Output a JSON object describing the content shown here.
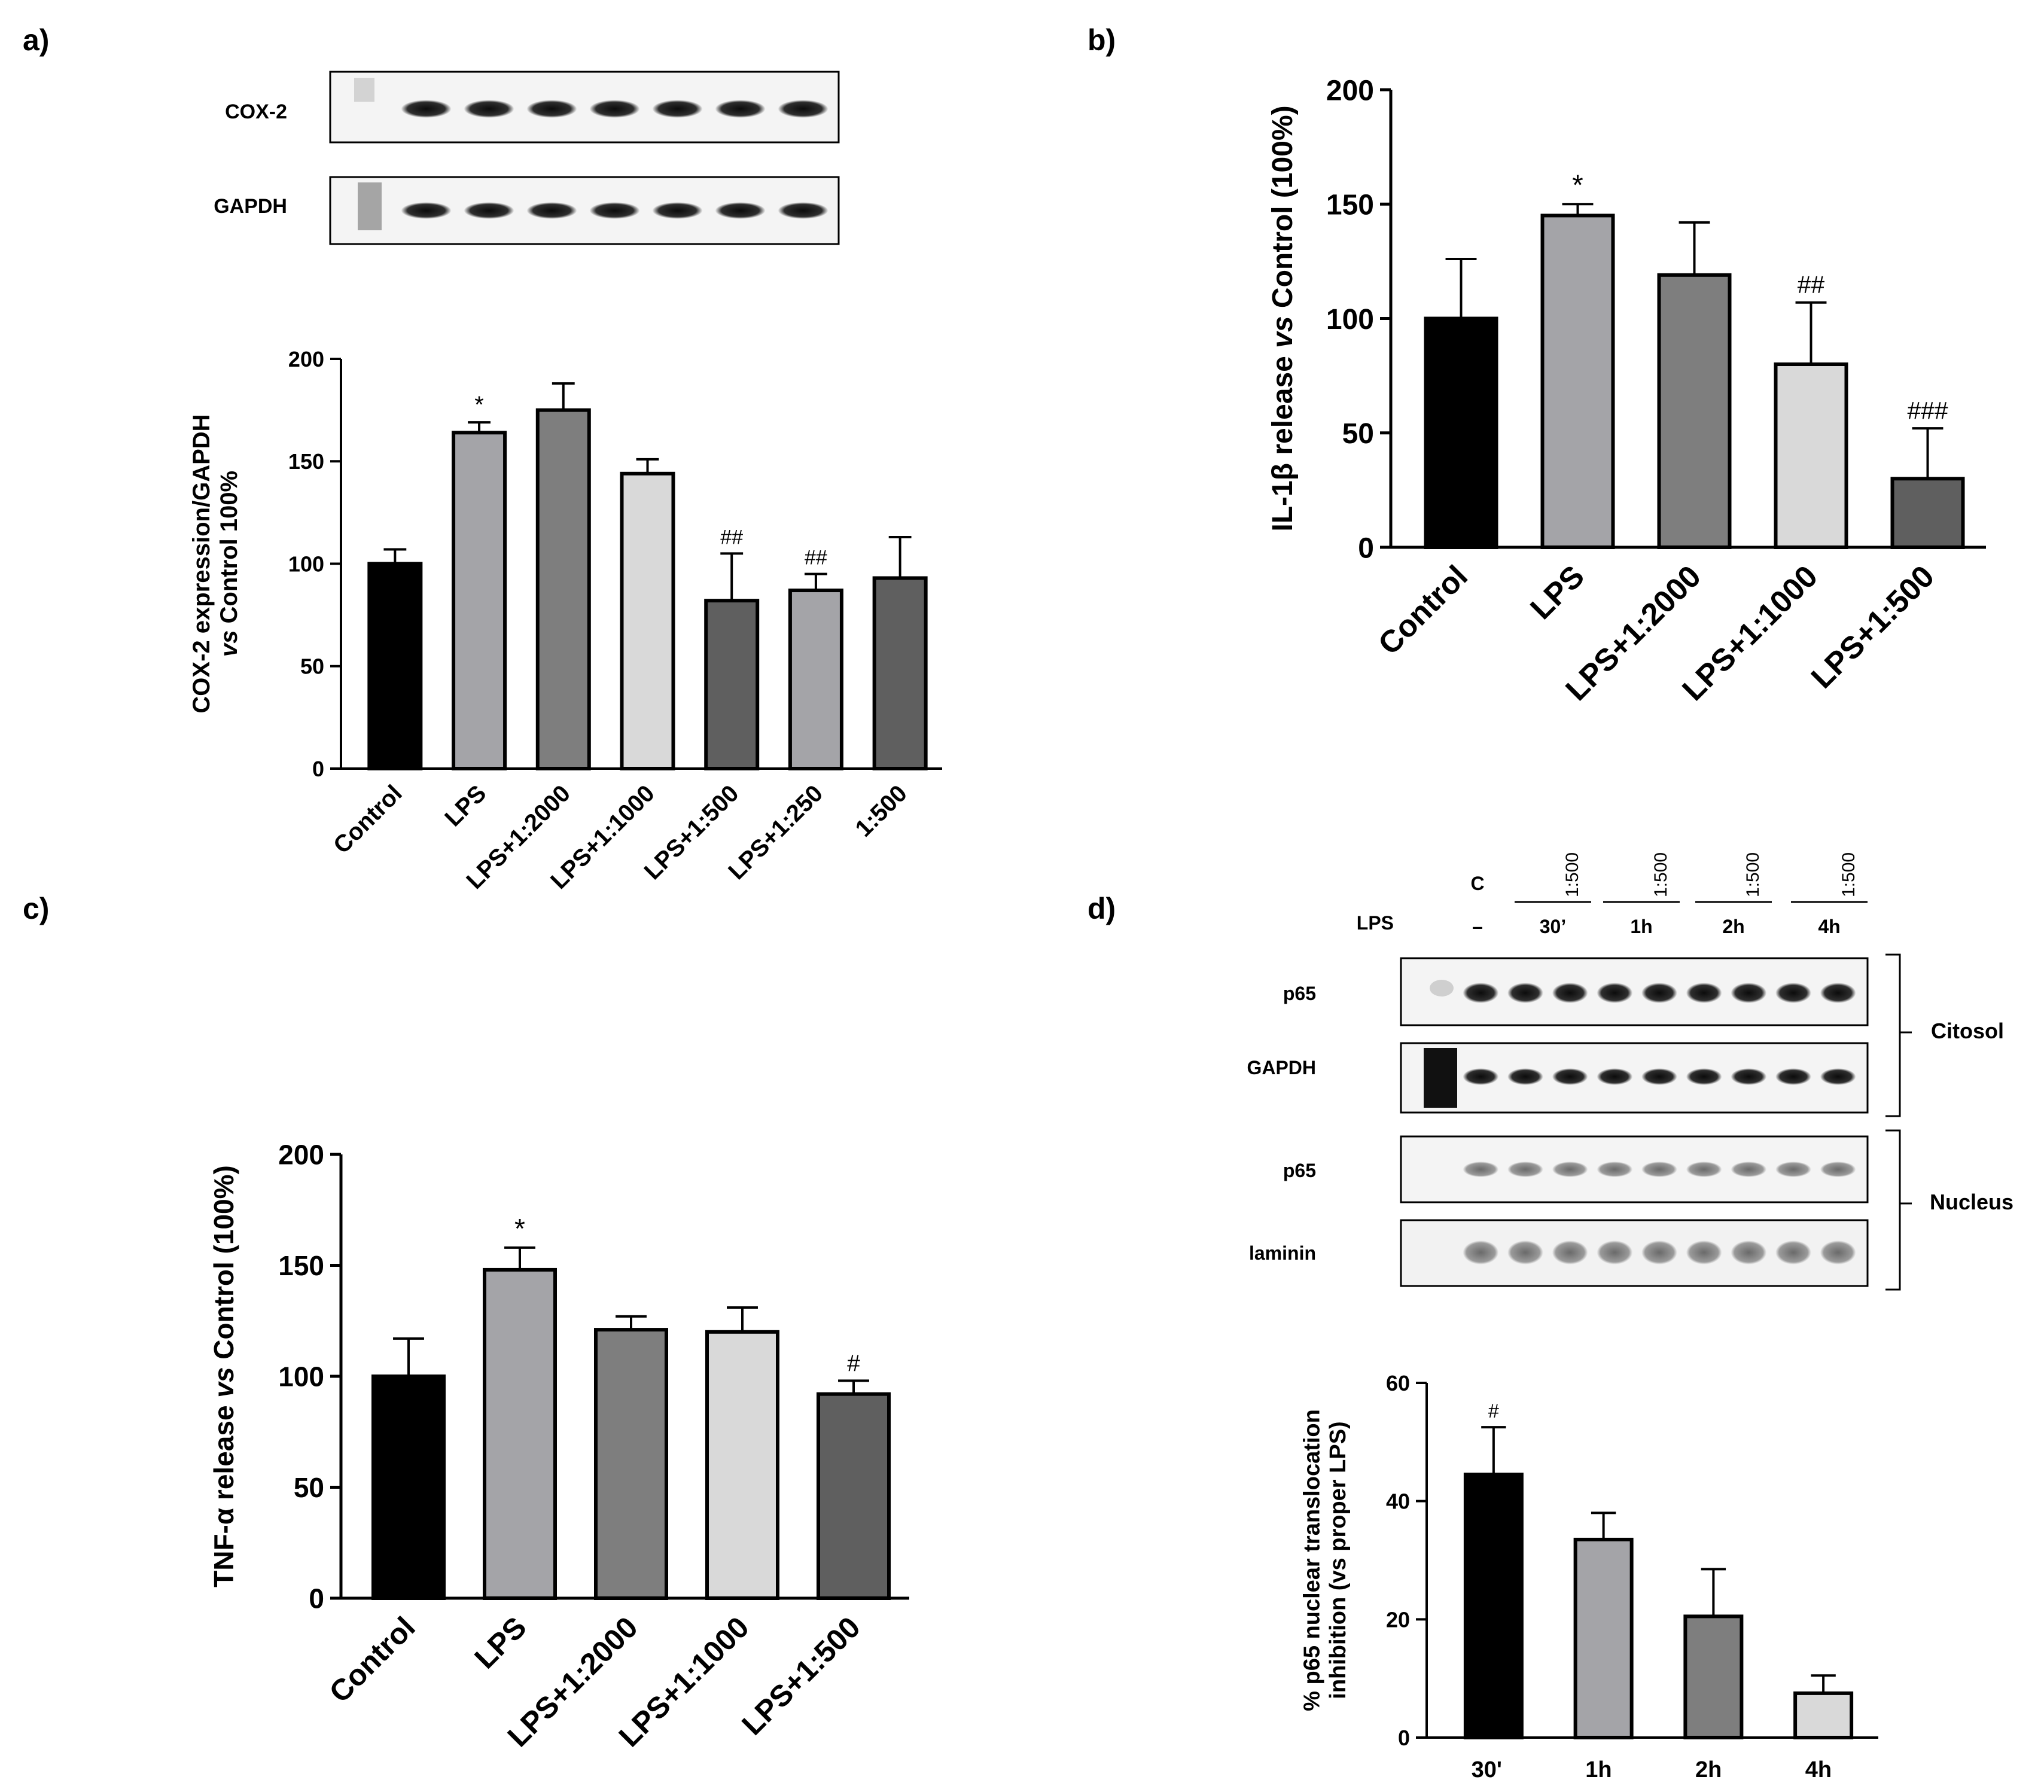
{
  "panels": {
    "a": {
      "letter": "a)",
      "blot_labels": [
        "COX-2",
        "GAPDH"
      ],
      "lanes": 7
    },
    "b": {
      "letter": "b)"
    },
    "c": {
      "letter": "c)"
    },
    "d": {
      "letter": "d)",
      "header": {
        "control": "C",
        "lps_label": "LPS",
        "lps_dash": "–",
        "dilution": "1:500",
        "times": [
          "30’",
          "1h",
          "2h",
          "4h"
        ]
      },
      "blot_labels": [
        "p65",
        "GAPDH",
        "p65",
        "laminin"
      ],
      "fraction_labels": [
        "Citosol",
        "Nucleus"
      ]
    }
  },
  "chart_data": [
    {
      "id": "a",
      "type": "bar",
      "title": "",
      "ylabel_lines": [
        "COX-2 expression/GAPDH",
        "vs Control 100%"
      ],
      "xlabel": "",
      "categories": [
        "Control",
        "LPS",
        "LPS+1:2000",
        "LPS+1:1000",
        "LPS+1:500",
        "LPS+1:250",
        "1:500"
      ],
      "values": [
        100,
        164,
        175,
        144,
        82,
        87,
        93
      ],
      "errors": [
        7,
        5,
        13,
        7,
        23,
        8,
        20
      ],
      "annotations": [
        "",
        "*",
        "",
        "",
        "##",
        "##",
        ""
      ],
      "colors": [
        "#000000",
        "#a4a4a8",
        "#7e7e7e",
        "#d9d9d9",
        "#5f5f5f",
        "#a4a4a8",
        "#5f5f5f"
      ],
      "ylim": [
        0,
        200
      ],
      "yticks": [
        0,
        50,
        100,
        150,
        200
      ]
    },
    {
      "id": "b",
      "type": "bar",
      "title": "",
      "ylabel_parts": [
        "IL-1β release ",
        "vs",
        " Control (100%)"
      ],
      "xlabel": "",
      "categories": [
        "Control",
        "LPS",
        "LPS+1:2000",
        "LPS+1:1000",
        "LPS+1:500"
      ],
      "values": [
        100,
        145,
        119,
        80,
        30
      ],
      "errors": [
        26,
        5,
        23,
        27,
        22
      ],
      "annotations": [
        "",
        "*",
        "",
        "##",
        "###"
      ],
      "colors": [
        "#000000",
        "#a4a4a8",
        "#7e7e7e",
        "#d9d9d9",
        "#5f5f5f"
      ],
      "ylim": [
        0,
        200
      ],
      "yticks": [
        0,
        50,
        100,
        150,
        200
      ]
    },
    {
      "id": "c",
      "type": "bar",
      "title": "",
      "ylabel_parts": [
        "TNF-α release ",
        "vs",
        " Control (100%)"
      ],
      "xlabel": "",
      "categories": [
        "Control",
        "LPS",
        "LPS+1:2000",
        "LPS+1:1000",
        "LPS+1:500"
      ],
      "values": [
        100,
        148,
        121,
        120,
        92
      ],
      "errors": [
        17,
        10,
        6,
        11,
        6
      ],
      "annotations": [
        "",
        "*",
        "",
        "",
        "#"
      ],
      "colors": [
        "#000000",
        "#a4a4a8",
        "#7e7e7e",
        "#d9d9d9",
        "#5f5f5f"
      ],
      "ylim": [
        0,
        200
      ],
      "yticks": [
        0,
        50,
        100,
        150,
        200
      ]
    },
    {
      "id": "d",
      "type": "bar",
      "title": "",
      "ylabel_lines": [
        "% p65 nuclear translocation",
        "inhibition (vs proper LPS)"
      ],
      "xlabel": "",
      "categories": [
        "30'",
        "1h",
        "2h",
        "4h"
      ],
      "values": [
        44.5,
        33.5,
        20.5,
        7.5
      ],
      "errors": [
        8,
        4.5,
        8,
        3
      ],
      "annotations": [
        "#",
        "",
        "",
        ""
      ],
      "colors": [
        "#000000",
        "#a4a4a8",
        "#7e7e7e",
        "#d9d9d9"
      ],
      "ylim": [
        0,
        60
      ],
      "yticks": [
        0,
        20,
        40,
        60
      ]
    }
  ]
}
